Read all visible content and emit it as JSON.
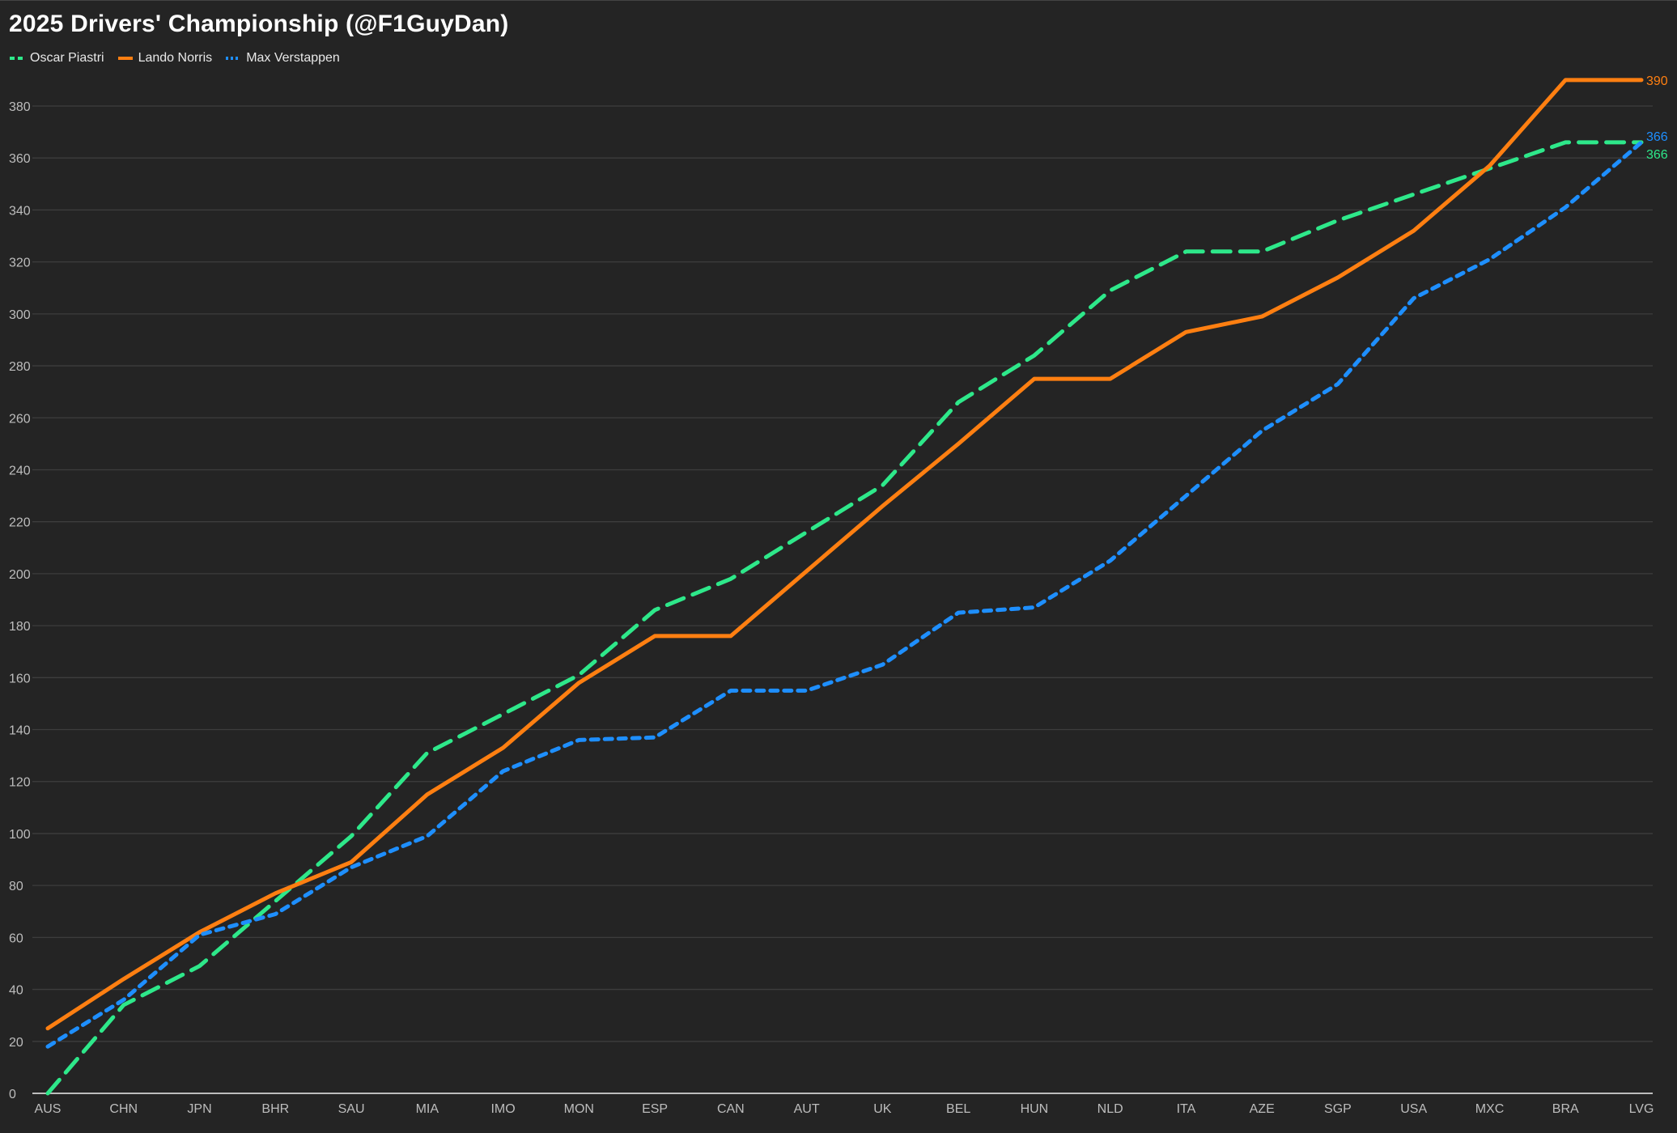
{
  "chart_data": {
    "type": "line",
    "title": "2025 Drivers' Championship (@F1GuyDan)",
    "xlabel": "",
    "ylabel": "",
    "ylim": [
      0,
      380
    ],
    "yticks": [
      0,
      20,
      40,
      60,
      80,
      100,
      120,
      140,
      160,
      180,
      200,
      220,
      240,
      260,
      280,
      300,
      320,
      340,
      360,
      380
    ],
    "grid": true,
    "legend_position": "top-left",
    "categories": [
      "AUS",
      "CHN",
      "JPN",
      "BHR",
      "SAU",
      "MIA",
      "IMO",
      "MON",
      "ESP",
      "CAN",
      "AUT",
      "UK",
      "BEL",
      "HUN",
      "NLD",
      "ITA",
      "AZE",
      "SGP",
      "USA",
      "MXC",
      "BRA",
      "LVG"
    ],
    "series": [
      {
        "name": "Oscar Piastri",
        "color": "#2ee88a",
        "dash": "dashed",
        "values": [
          0,
          34,
          49,
          74,
          99,
          131,
          146,
          161,
          186,
          198,
          216,
          234,
          266,
          284,
          309,
          324,
          324,
          336,
          346,
          356,
          366,
          366
        ],
        "end_label": "366"
      },
      {
        "name": "Lando Norris",
        "color": "#ff7f11",
        "dash": "solid",
        "values": [
          25,
          44,
          62,
          77,
          89,
          115,
          133,
          158,
          176,
          176,
          201,
          226,
          250,
          275,
          275,
          293,
          299,
          314,
          332,
          357,
          390,
          390
        ],
        "end_label": "390"
      },
      {
        "name": "Max Verstappen",
        "color": "#1e8fff",
        "dash": "dotted",
        "values": [
          18,
          36,
          61,
          69,
          87,
          99,
          124,
          136,
          137,
          155,
          155,
          165,
          185,
          187,
          205,
          230,
          255,
          273,
          306,
          321,
          341,
          366
        ],
        "end_label": "366"
      }
    ]
  }
}
